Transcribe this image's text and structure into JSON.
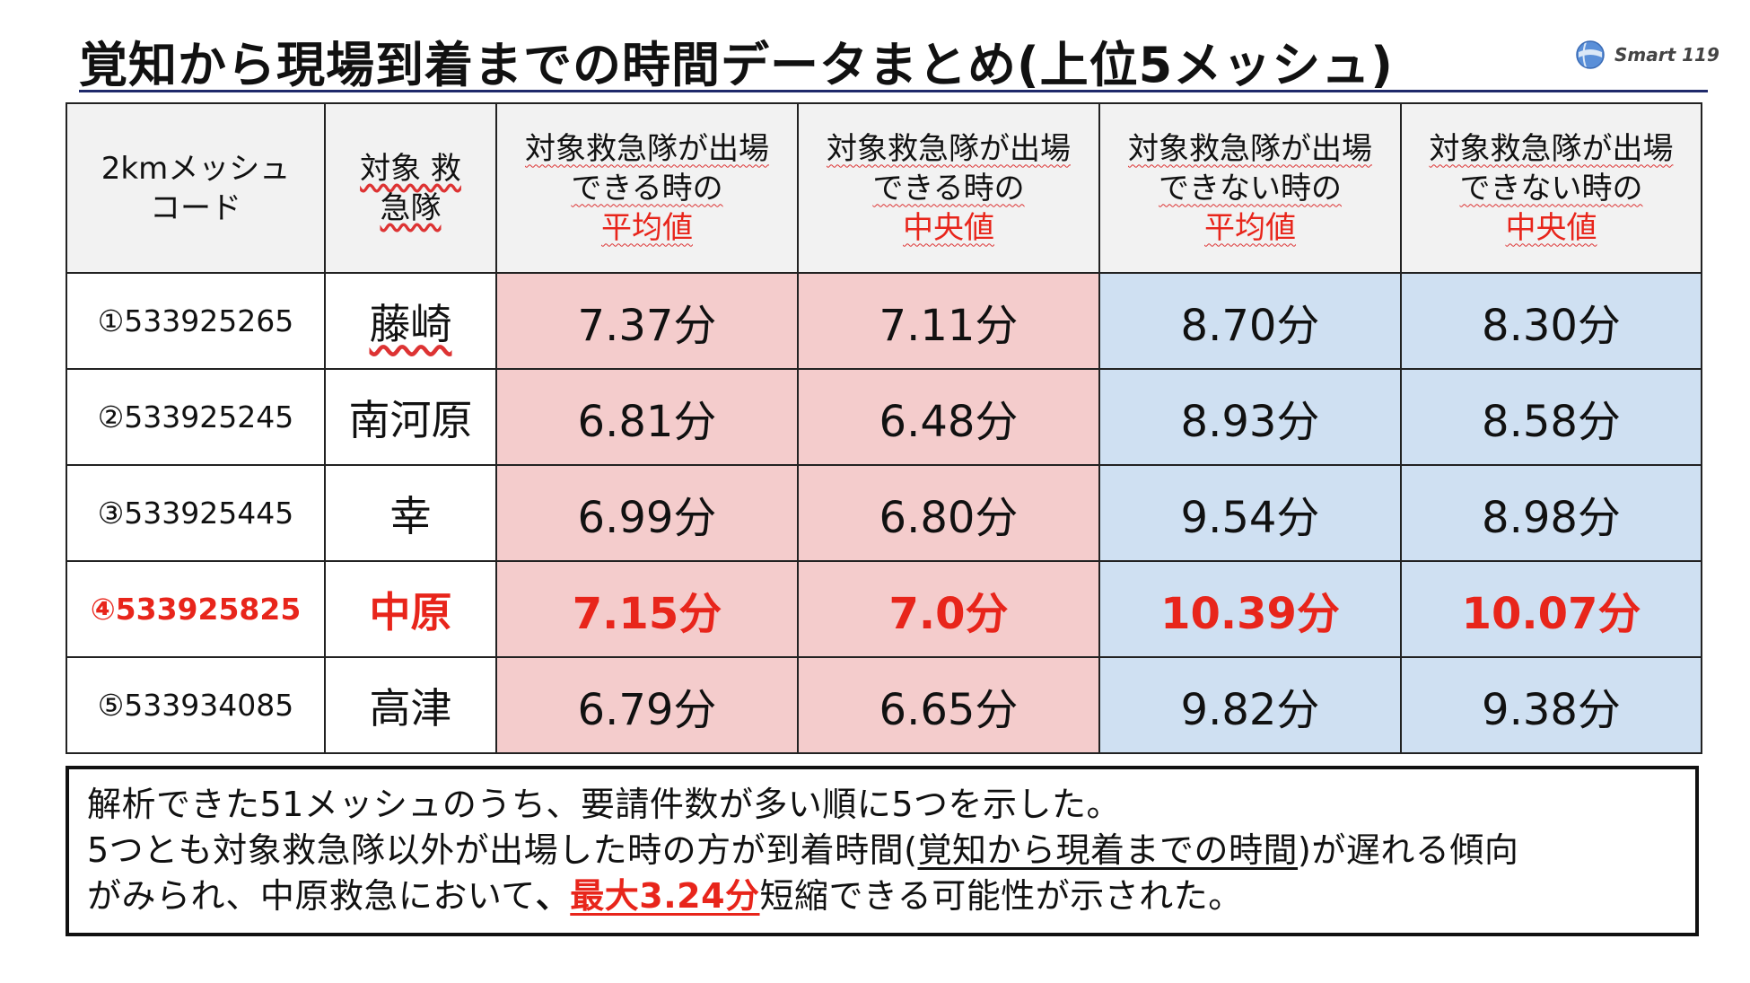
{
  "title": "覚知から現場到着までの時間データまとめ(上位5メッシュ)",
  "logo": {
    "text": "Smart 119",
    "icon": "globe-icon"
  },
  "table": {
    "headers": {
      "code": [
        "2kmメッシュ",
        "コード"
      ],
      "team": [
        "対象 救",
        "急隊"
      ],
      "cols": [
        {
          "line1": "対象救急隊が出場",
          "line2": "できる時の",
          "metric": "平均値"
        },
        {
          "line1": "対象救急隊が出場",
          "line2": "できる時の",
          "metric": "中央値"
        },
        {
          "line1": "対象救急隊が出場",
          "line2": "できない時の",
          "metric": "平均値"
        },
        {
          "line1": "対象救急隊が出場",
          "line2": "できない時の",
          "metric": "中央値"
        }
      ]
    },
    "rows": [
      {
        "code": "①533925265",
        "team": "藤崎",
        "v1": "7.37分",
        "v2": "7.11分",
        "v3": "8.70分",
        "v4": "8.30分",
        "highlight": false
      },
      {
        "code": "②533925245",
        "team": "南河原",
        "v1": "6.81分",
        "v2": "6.48分",
        "v3": "8.93分",
        "v4": "8.58分",
        "highlight": false
      },
      {
        "code": "③533925445",
        "team": "幸",
        "v1": "6.99分",
        "v2": "6.80分",
        "v3": "9.54分",
        "v4": "8.98分",
        "highlight": false
      },
      {
        "code": "④533925825",
        "team": "中原",
        "v1": "7.15分",
        "v2": "7.0分",
        "v3": "10.39分",
        "v4": "10.07分",
        "highlight": true
      },
      {
        "code": "⑤533934085",
        "team": "高津",
        "v1": "6.79分",
        "v2": "6.65分",
        "v3": "9.82分",
        "v4": "9.38分",
        "highlight": false
      }
    ]
  },
  "note": {
    "line1": "解析できた51メッシュのうち、要請件数が多い順に5つを示した。",
    "line2_pre": "5つとも対象救急隊以外が出場した時の方が到着時間(",
    "line2_und": "覚知から現着までの時間",
    "line2_post": ")が遅れる傾向",
    "line3_pre": "がみられ、中原救急において",
    "line3_comma": "、",
    "line3_emph": "最大3.24分",
    "line3_post": "短縮できる可能性が示された。"
  },
  "colors": {
    "accent_red": "#e8251b",
    "pink_cell": "#f4cccc",
    "blue_cell": "#cfe0f2",
    "title_rule": "#1f2a6b"
  }
}
